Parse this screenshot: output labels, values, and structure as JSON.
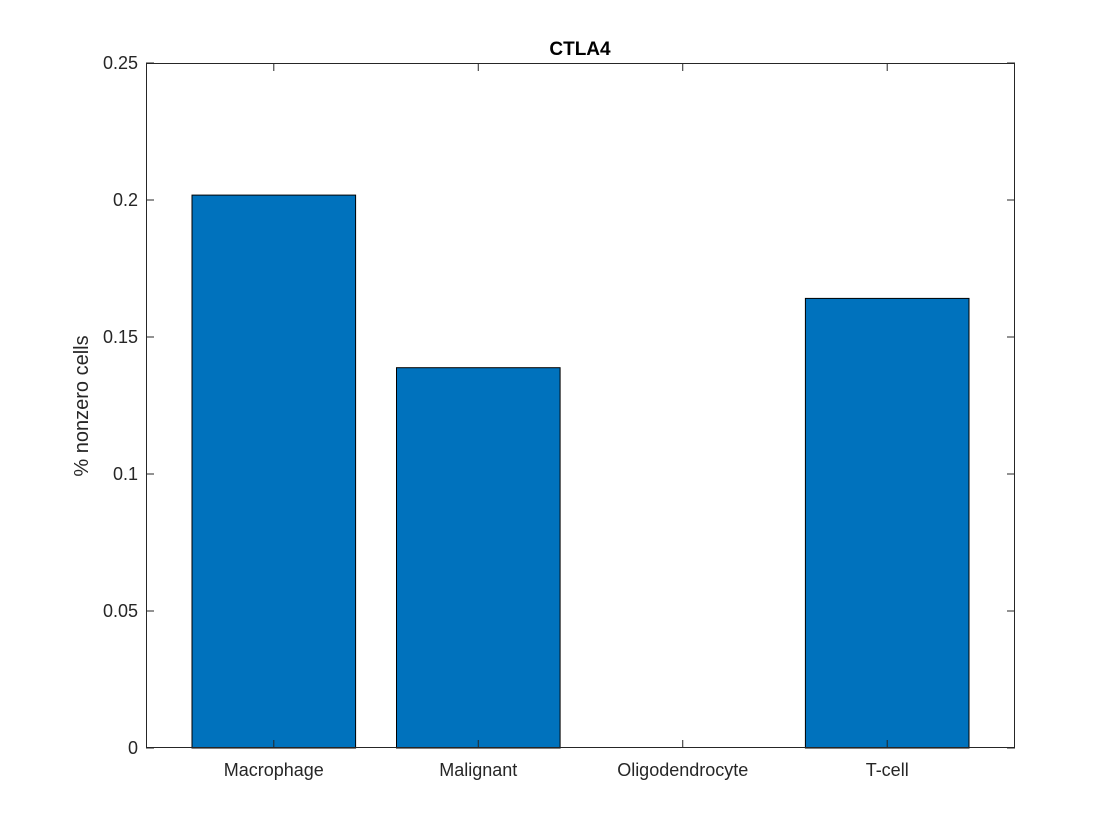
{
  "chart_data": {
    "type": "bar",
    "title": "CTLA4",
    "xlabel": "",
    "ylabel": "% nonzero cells",
    "categories": [
      "Macrophage",
      "Malignant",
      "Oligodendrocyte",
      "T-cell"
    ],
    "values": [
      0.2018,
      0.1388,
      0.0,
      0.1641
    ],
    "ylim": [
      0,
      0.25
    ],
    "yticks": [
      0,
      0.05,
      0.1,
      0.15,
      0.2,
      0.25
    ],
    "ytick_labels": [
      "0",
      "0.05",
      "0.1",
      "0.15",
      "0.2",
      "0.25"
    ],
    "bar_color": "#0072BD",
    "bar_edge_color": "#000000",
    "grid": false,
    "box": true
  }
}
